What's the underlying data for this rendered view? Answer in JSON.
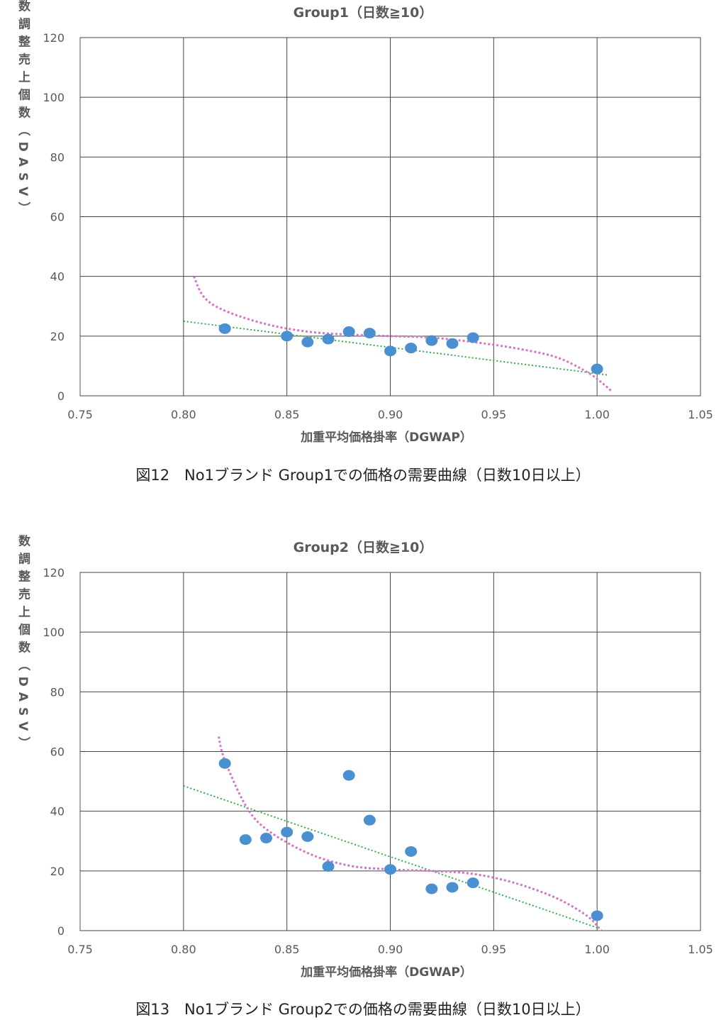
{
  "figures": [
    {
      "caption": "図12　No1ブランド Group1での価格の需要曲線（日数10日以上）"
    },
    {
      "caption": "図13　No1ブランド Group2での価格の需要曲線（日数10日以上）"
    }
  ],
  "chart_data": [
    {
      "type": "scatter",
      "title": "Group1（日数≧10）",
      "xlabel": "加重平均価格掛率（DGWAP）",
      "ylabel": "日数調整売上個数（DASV）",
      "xlim": [
        0.75,
        1.05
      ],
      "ylim": [
        0,
        120
      ],
      "xticks": [
        "0.75",
        "0.80",
        "0.85",
        "0.90",
        "0.95",
        "1.00",
        "1.05"
      ],
      "yticks": [
        "0",
        "20",
        "40",
        "60",
        "80",
        "100",
        "120"
      ],
      "grid": true,
      "colors": {
        "points": "#4a90d0",
        "linear": "#2db04b",
        "poly": "#d177c6",
        "grid": "#000000"
      },
      "points": [
        {
          "x": 0.82,
          "y": 22.5
        },
        {
          "x": 0.85,
          "y": 20.0
        },
        {
          "x": 0.86,
          "y": 18.0
        },
        {
          "x": 0.87,
          "y": 19.0
        },
        {
          "x": 0.88,
          "y": 21.5
        },
        {
          "x": 0.89,
          "y": 21.0
        },
        {
          "x": 0.9,
          "y": 15.0
        },
        {
          "x": 0.91,
          "y": 16.0
        },
        {
          "x": 0.92,
          "y": 18.5
        },
        {
          "x": 0.93,
          "y": 17.5
        },
        {
          "x": 0.94,
          "y": 19.5
        },
        {
          "x": 1.0,
          "y": 9.0
        }
      ],
      "linear_trend": [
        {
          "x": 0.8,
          "y": 25.0
        },
        {
          "x": 1.005,
          "y": 7.0
        }
      ],
      "poly_trend": [
        {
          "x": 0.805,
          "y": 40.0
        },
        {
          "x": 0.81,
          "y": 33.0
        },
        {
          "x": 0.82,
          "y": 28.5
        },
        {
          "x": 0.84,
          "y": 24.0
        },
        {
          "x": 0.86,
          "y": 21.5
        },
        {
          "x": 0.88,
          "y": 20.5
        },
        {
          "x": 0.9,
          "y": 20.0
        },
        {
          "x": 0.92,
          "y": 19.5
        },
        {
          "x": 0.94,
          "y": 18.0
        },
        {
          "x": 0.96,
          "y": 16.0
        },
        {
          "x": 0.98,
          "y": 13.0
        },
        {
          "x": 0.995,
          "y": 8.0
        },
        {
          "x": 1.003,
          "y": 4.0
        },
        {
          "x": 1.007,
          "y": 1.5
        }
      ]
    },
    {
      "type": "scatter",
      "title": "Group2（日数≧10）",
      "xlabel": "加重平均価格掛率（DGWAP）",
      "ylabel": "日数調整売上個数（DASV）",
      "xlim": [
        0.75,
        1.05
      ],
      "ylim": [
        0,
        120
      ],
      "xticks": [
        "0.75",
        "0.80",
        "0.85",
        "0.90",
        "0.95",
        "1.00",
        "1.05"
      ],
      "yticks": [
        "0",
        "20",
        "40",
        "60",
        "80",
        "100",
        "120"
      ],
      "grid": true,
      "colors": {
        "points": "#4a90d0",
        "linear": "#2db04b",
        "poly": "#d177c6",
        "grid": "#000000"
      },
      "points": [
        {
          "x": 0.82,
          "y": 56.0
        },
        {
          "x": 0.83,
          "y": 30.5
        },
        {
          "x": 0.84,
          "y": 31.0
        },
        {
          "x": 0.85,
          "y": 33.0
        },
        {
          "x": 0.86,
          "y": 31.5
        },
        {
          "x": 0.87,
          "y": 21.5
        },
        {
          "x": 0.88,
          "y": 52.0
        },
        {
          "x": 0.89,
          "y": 37.0
        },
        {
          "x": 0.9,
          "y": 20.5
        },
        {
          "x": 0.91,
          "y": 26.5
        },
        {
          "x": 0.92,
          "y": 14.0
        },
        {
          "x": 0.93,
          "y": 14.5
        },
        {
          "x": 0.94,
          "y": 16.0
        },
        {
          "x": 1.0,
          "y": 5.0
        }
      ],
      "linear_trend": [
        {
          "x": 0.8,
          "y": 48.5
        },
        {
          "x": 1.0,
          "y": 1.0
        }
      ],
      "poly_trend": [
        {
          "x": 0.817,
          "y": 65.0
        },
        {
          "x": 0.82,
          "y": 57.0
        },
        {
          "x": 0.83,
          "y": 42.0
        },
        {
          "x": 0.84,
          "y": 34.0
        },
        {
          "x": 0.86,
          "y": 26.0
        },
        {
          "x": 0.88,
          "y": 21.8
        },
        {
          "x": 0.9,
          "y": 20.5
        },
        {
          "x": 0.92,
          "y": 20.0
        },
        {
          "x": 0.94,
          "y": 19.0
        },
        {
          "x": 0.96,
          "y": 16.0
        },
        {
          "x": 0.98,
          "y": 11.0
        },
        {
          "x": 0.995,
          "y": 5.0
        },
        {
          "x": 1.002,
          "y": 0.0
        }
      ]
    }
  ]
}
